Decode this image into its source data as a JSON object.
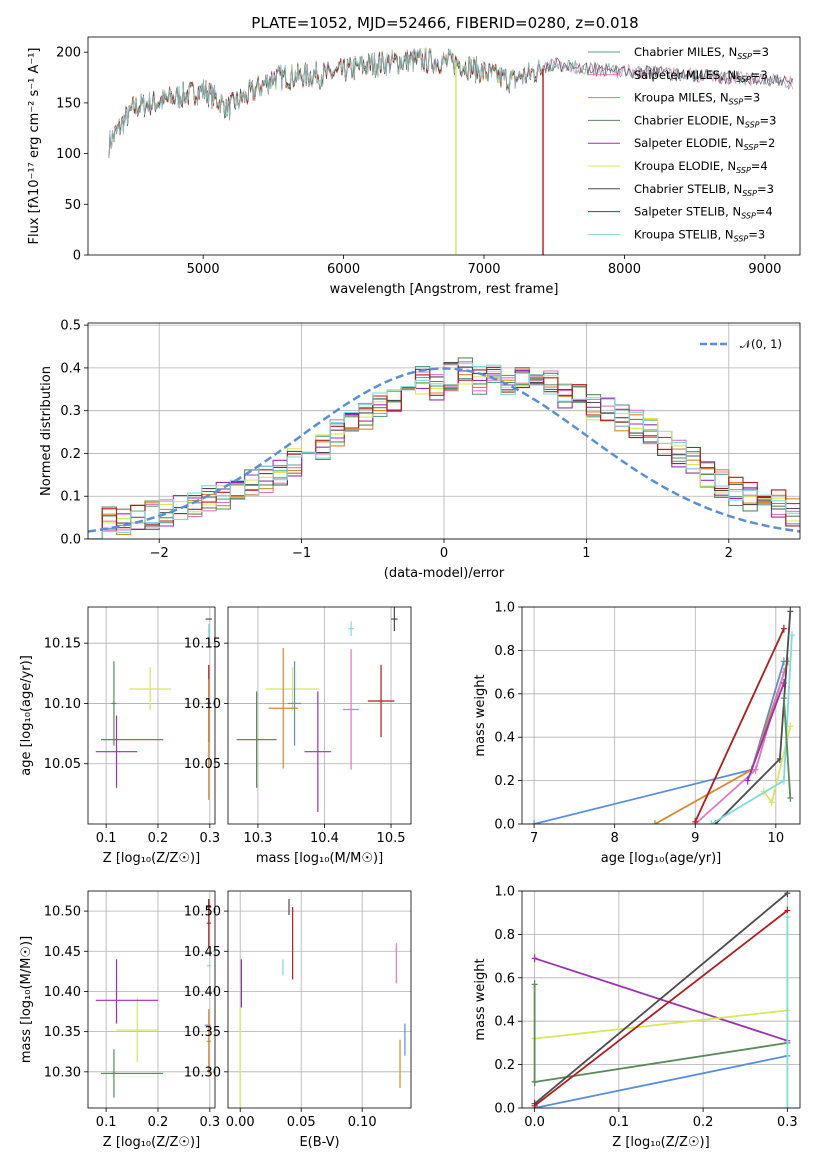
{
  "figure": {
    "title": "PLATE=1052, MJD=52466, FIBERID=0280, z=0.018"
  },
  "chart_data": [
    {
      "type": "line",
      "panel": "spectrum",
      "xlabel": "wavelength [Angstrom, rest frame]",
      "ylabel": "Flux [fλ10⁻¹⁷ erg cm⁻² s⁻¹ A⁻¹]",
      "xlim": [
        4180,
        9250
      ],
      "ylim": [
        0,
        215
      ],
      "xticks": [
        5000,
        6000,
        7000,
        8000,
        9000
      ],
      "yticks": [
        0,
        50,
        100,
        150,
        200
      ],
      "legend_position": "top-right",
      "spectrum_trend": {
        "x": [
          4330,
          4500,
          4800,
          5000,
          5180,
          5500,
          5900,
          6200,
          6500,
          6800,
          7000,
          7200,
          7500,
          7800,
          8200,
          8600,
          9000,
          9200
        ],
        "y": [
          110,
          145,
          155,
          163,
          145,
          175,
          178,
          188,
          192,
          190,
          180,
          172,
          188,
          183,
          180,
          176,
          173,
          170
        ]
      },
      "dips": [
        {
          "x": 6800,
          "y": 0,
          "series": "Kroupa ELODIE"
        },
        {
          "x": 7420,
          "y": 0,
          "series": "Salpeter STELIB"
        }
      ],
      "series": [
        {
          "name": "Chabrier MILES",
          "nssp": "3",
          "color": "#5c9e8c"
        },
        {
          "name": "Salpeter MILES",
          "nssp": "3",
          "color": "#e377c2"
        },
        {
          "name": "Kroupa MILES",
          "nssp": "3",
          "color": "#d4892f"
        },
        {
          "name": "Chabrier ELODIE",
          "nssp": "3",
          "color": "#5b8a5b"
        },
        {
          "name": "Salpeter ELODIE",
          "nssp": "2",
          "color": "#9b30b0"
        },
        {
          "name": "Kroupa ELODIE",
          "nssp": "4",
          "color": "#d7e85a"
        },
        {
          "name": "Chabrier STELIB",
          "nssp": "3",
          "color": "#4c4c4c"
        },
        {
          "name": "Salpeter STELIB",
          "nssp": "4",
          "color": "#b01c1c"
        },
        {
          "name": "Kroupa STELIB",
          "nssp": "3",
          "color": "#7fdada"
        }
      ]
    },
    {
      "type": "histogram",
      "panel": "residuals",
      "xlabel": "(data-model)/error",
      "ylabel": "Normed distribution",
      "xlim": [
        -2.5,
        2.5
      ],
      "ylim": [
        0,
        0.505
      ],
      "xticks": [
        -2,
        -1,
        0,
        1,
        2
      ],
      "yticks": [
        0.0,
        0.1,
        0.2,
        0.3,
        0.4,
        0.5
      ],
      "grid": true,
      "bin_width": 0.1,
      "bin_start": -2.5,
      "base_values": [
        0.035,
        0.04,
        0.045,
        0.05,
        0.055,
        0.065,
        0.07,
        0.08,
        0.09,
        0.1,
        0.11,
        0.13,
        0.14,
        0.16,
        0.18,
        0.2,
        0.22,
        0.25,
        0.27,
        0.29,
        0.31,
        0.33,
        0.35,
        0.37,
        0.36,
        0.38,
        0.39,
        0.37,
        0.4,
        0.36,
        0.37,
        0.35,
        0.36,
        0.34,
        0.33,
        0.31,
        0.3,
        0.28,
        0.27,
        0.25,
        0.22,
        0.2,
        0.18,
        0.15,
        0.13,
        0.11,
        0.1,
        0.09,
        0.08,
        0.065
      ],
      "normal_curve": {
        "label": "𝒩(0, 1)",
        "color": "#5a8fd6",
        "style": "dashed"
      },
      "legend_position": "top-right"
    },
    {
      "type": "scatter",
      "panel": "age-vs-Z",
      "xlabel": "Z [log₁₀(Z/Z☉)]",
      "ylabel": "age  [log₁₀(age/yr)]",
      "xlim": [
        0.065,
        0.31
      ],
      "ylim": [
        10.0,
        10.18
      ],
      "xticks": [
        0.1,
        0.2,
        0.3
      ],
      "yticks": [
        10.05,
        10.1,
        10.15
      ],
      "grid": true,
      "points": [
        {
          "x": 0.115,
          "y": 10.1,
          "xerr": 0.005,
          "yerr": 0.035,
          "color": "#5b8a5b"
        },
        {
          "x": 0.185,
          "y": 10.112,
          "xerr": 0.04,
          "yerr": 0.018,
          "color": "#d7e85a"
        },
        {
          "x": 0.15,
          "y": 10.07,
          "xerr": 0.06,
          "yerr": 0.0,
          "color": "#5b8a5b"
        },
        {
          "x": 0.12,
          "y": 10.06,
          "xerr": 0.04,
          "yerr": 0.03,
          "color": "#9b30b0"
        },
        {
          "x": 0.298,
          "y": 10.17,
          "xerr": 0.006,
          "yerr": 0.0,
          "color": "#4c4c4c"
        },
        {
          "x": 0.298,
          "y": 10.16,
          "xerr": 0.002,
          "yerr": 0.006,
          "color": "#7fdada"
        },
        {
          "x": 0.296,
          "y": 10.1,
          "xerr": 0.006,
          "yerr": 0.0,
          "color": "#5a8fd6"
        },
        {
          "x": 0.298,
          "y": 10.1,
          "xerr": 0.004,
          "yerr": 0.032,
          "color": "#b01c1c"
        },
        {
          "x": 0.298,
          "y": 10.07,
          "xerr": 0.002,
          "yerr": 0.05,
          "color": "#d4892f"
        }
      ]
    },
    {
      "type": "scatter",
      "panel": "age-vs-mass",
      "xlabel": "mass [log₁₀(M/M☉)]",
      "ylabel": "",
      "xlim": [
        10.255,
        10.53
      ],
      "ylim": [
        10.0,
        10.18
      ],
      "xticks": [
        10.3,
        10.4,
        10.5
      ],
      "yticks": [
        10.05,
        10.1,
        10.15
      ],
      "grid": true,
      "points": [
        {
          "x": 10.298,
          "y": 10.07,
          "xerr": 0.03,
          "yerr": 0.04,
          "color": "#5b8a5b"
        },
        {
          "x": 10.352,
          "y": 10.112,
          "xerr": 0.04,
          "yerr": 0.018,
          "color": "#d7e85a"
        },
        {
          "x": 10.338,
          "y": 10.096,
          "xerr": 0.022,
          "yerr": 0.05,
          "color": "#d4892f"
        },
        {
          "x": 10.355,
          "y": 10.1,
          "xerr": 0.01,
          "yerr": 0.035,
          "color": "#5a8fd6"
        },
        {
          "x": 10.39,
          "y": 10.06,
          "xerr": 0.02,
          "yerr": 0.05,
          "color": "#9b30b0"
        },
        {
          "x": 10.44,
          "y": 10.095,
          "xerr": 0.012,
          "yerr": 0.05,
          "color": "#e377c2"
        },
        {
          "x": 10.44,
          "y": 10.162,
          "xerr": 0.004,
          "yerr": 0.006,
          "color": "#7fdada"
        },
        {
          "x": 10.485,
          "y": 10.102,
          "xerr": 0.02,
          "yerr": 0.03,
          "color": "#b01c1c"
        },
        {
          "x": 10.505,
          "y": 10.17,
          "xerr": 0.005,
          "yerr": 0.01,
          "color": "#4c4c4c"
        }
      ]
    },
    {
      "type": "line",
      "panel": "mass-weight-vs-age",
      "xlabel": "age  [log₁₀(age/yr)]",
      "ylabel": "mass weight",
      "xlim": [
        6.85,
        10.3
      ],
      "ylim": [
        0,
        1
      ],
      "xticks": [
        7,
        8,
        9,
        10
      ],
      "yticks": [
        0.0,
        0.2,
        0.4,
        0.6,
        0.8,
        1.0
      ],
      "grid": true,
      "series": [
        {
          "x": [
            7.0,
            9.7,
            10.1
          ],
          "y": [
            0.0,
            0.25,
            0.75
          ],
          "color": "#5a8fd6"
        },
        {
          "x": [
            8.5,
            9.7,
            10.15
          ],
          "y": [
            0.0,
            0.25,
            0.75
          ],
          "color": "#d4892f"
        },
        {
          "x": [
            9.0,
            9.75,
            10.1
          ],
          "y": [
            0.0,
            0.25,
            0.7
          ],
          "color": "#e377c2"
        },
        {
          "x": [
            9.25,
            10.05,
            10.18
          ],
          "y": [
            0.0,
            0.3,
            0.98
          ],
          "color": "#4c4c4c"
        },
        {
          "x": [
            9.0,
            10.1
          ],
          "y": [
            0.01,
            0.9
          ],
          "color": "#b01c1c"
        },
        {
          "x": [
            9.85,
            9.95,
            10.18
          ],
          "y": [
            0.15,
            0.1,
            0.45
          ],
          "color": "#d7e85a"
        },
        {
          "x": [
            9.2,
            10.1,
            10.2
          ],
          "y": [
            0.0,
            0.2,
            0.87
          ],
          "color": "#7fdada"
        },
        {
          "x": [
            10.1,
            10.18
          ],
          "y": [
            0.58,
            0.12
          ],
          "color": "#5b8a5b"
        },
        {
          "x": [
            9.65,
            10.1
          ],
          "y": [
            0.2,
            0.65
          ],
          "color": "#9b30b0"
        }
      ]
    },
    {
      "type": "scatter",
      "panel": "mass-vs-Z",
      "xlabel": "Z [log₁₀(Z/Z☉)]",
      "ylabel": "mass [log₁₀(M/M☉)]",
      "xlim": [
        0.065,
        0.31
      ],
      "ylim": [
        10.255,
        10.525
      ],
      "xticks": [
        0.1,
        0.2,
        0.3
      ],
      "yticks": [
        10.3,
        10.35,
        10.4,
        10.45,
        10.5
      ],
      "grid": true,
      "points": [
        {
          "x": 0.115,
          "y": 10.298,
          "xerr": 0.005,
          "yerr": 0.03,
          "color": "#5b8a5b"
        },
        {
          "x": 0.15,
          "y": 10.298,
          "xerr": 0.06,
          "yerr": 0.0,
          "color": "#5b8a5b"
        },
        {
          "x": 0.16,
          "y": 10.352,
          "xerr": 0.04,
          "yerr": 0.04,
          "color": "#d7e85a"
        },
        {
          "x": 0.14,
          "y": 10.389,
          "xerr": 0.06,
          "yerr": 0.0,
          "color": "#9b30b0"
        },
        {
          "x": 0.12,
          "y": 10.4,
          "xerr": 0.0,
          "yerr": 0.04,
          "color": "#9b30b0"
        },
        {
          "x": 0.298,
          "y": 10.505,
          "xerr": 0.005,
          "yerr": 0.01,
          "color": "#4c4c4c"
        },
        {
          "x": 0.298,
          "y": 10.485,
          "xerr": 0.004,
          "yerr": 0.03,
          "color": "#b01c1c"
        },
        {
          "x": 0.296,
          "y": 10.447,
          "xerr": 0.005,
          "yerr": 0.0,
          "color": "#e377c2"
        },
        {
          "x": 0.298,
          "y": 10.432,
          "xerr": 0.004,
          "yerr": 0.0,
          "color": "#7fdada"
        },
        {
          "x": 0.296,
          "y": 10.358,
          "xerr": 0.006,
          "yerr": 0.0,
          "color": "#5a8fd6"
        },
        {
          "x": 0.298,
          "y": 10.338,
          "xerr": 0.004,
          "yerr": 0.04,
          "color": "#d4892f"
        }
      ]
    },
    {
      "type": "scatter",
      "panel": "mass-vs-EBV",
      "xlabel": "E(B-V)",
      "ylabel": "",
      "xlim": [
        -0.01,
        0.14
      ],
      "ylim": [
        10.255,
        10.525
      ],
      "xticks": [
        0.0,
        0.05,
        0.1
      ],
      "yticks": [
        10.3,
        10.35,
        10.4,
        10.45,
        10.5
      ],
      "grid": true,
      "points": [
        {
          "x": 0.0,
          "y": 10.3,
          "xerr": 0.0,
          "yerr": 0.08,
          "color": "#d7e85a"
        },
        {
          "x": 0.001,
          "y": 10.41,
          "xerr": 0.0,
          "yerr": 0.03,
          "color": "#9b30b0"
        },
        {
          "x": 0.035,
          "y": 10.43,
          "xerr": 0.0,
          "yerr": 0.01,
          "color": "#7fdada"
        },
        {
          "x": 0.04,
          "y": 10.505,
          "xerr": 0.0,
          "yerr": 0.01,
          "color": "#4c4c4c"
        },
        {
          "x": 0.043,
          "y": 10.46,
          "xerr": 0.0,
          "yerr": 0.045,
          "color": "#b01c1c"
        },
        {
          "x": 0.128,
          "y": 10.435,
          "xerr": 0.0,
          "yerr": 0.025,
          "color": "#e377c2"
        },
        {
          "x": 0.131,
          "y": 10.31,
          "xerr": 0.0,
          "yerr": 0.03,
          "color": "#d4892f"
        },
        {
          "x": 0.135,
          "y": 10.34,
          "xerr": 0.0,
          "yerr": 0.02,
          "color": "#5a8fd6"
        }
      ]
    },
    {
      "type": "line",
      "panel": "mass-weight-vs-Z",
      "xlabel": "Z [log₁₀(Z/Z☉)]",
      "ylabel": "mass weight",
      "xlim": [
        -0.015,
        0.315
      ],
      "ylim": [
        0,
        1
      ],
      "xticks": [
        0.0,
        0.1,
        0.2,
        0.3
      ],
      "yticks": [
        0.0,
        0.2,
        0.4,
        0.6,
        0.8,
        1.0
      ],
      "grid": true,
      "series": [
        {
          "x": [
            0.0,
            0.3
          ],
          "y": [
            0.0,
            0.24
          ],
          "color": "#5a8fd6"
        },
        {
          "x": [
            0.0,
            0.3
          ],
          "y": [
            0.69,
            0.31
          ],
          "color": "#9b30b0"
        },
        {
          "x": [
            0.0,
            0.3
          ],
          "y": [
            0.32,
            0.45
          ],
          "color": "#d7e85a"
        },
        {
          "x": [
            0.0,
            0.3
          ],
          "y": [
            0.12,
            0.3
          ],
          "color": "#5b8a5b"
        },
        {
          "x": [
            0.0,
            0.3
          ],
          "y": [
            0.02,
            0.99
          ],
          "color": "#4c4c4c"
        },
        {
          "x": [
            0.0,
            0.3
          ],
          "y": [
            0.01,
            0.91
          ],
          "color": "#b01c1c"
        },
        {
          "x": [
            0.0,
            0.0
          ],
          "y": [
            0.12,
            0.57
          ],
          "color": "#5b8a5b"
        },
        {
          "x": [
            0.3,
            0.3
          ],
          "y": [
            0.0,
            0.88
          ],
          "color": "#7fdada"
        }
      ]
    }
  ]
}
